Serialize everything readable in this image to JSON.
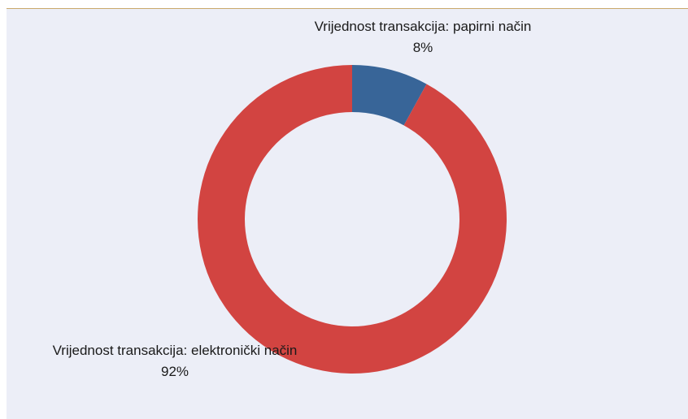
{
  "chart_data": {
    "type": "donut",
    "categories": [
      "Vrijednost transakcija: papirni način",
      "Vrijednost transakcija: elektronički način"
    ],
    "values": [
      8,
      92
    ],
    "value_labels": [
      "8%",
      "92%"
    ],
    "colors": [
      "#386598",
      "#d24441"
    ]
  }
}
